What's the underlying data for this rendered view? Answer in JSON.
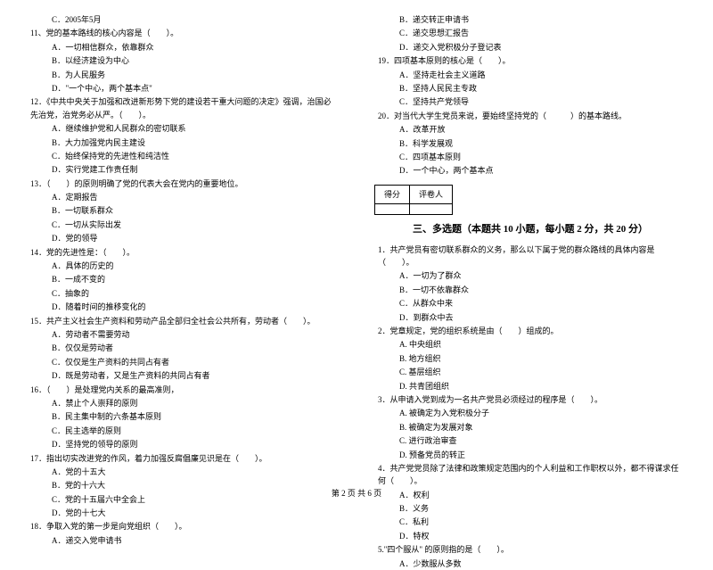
{
  "leftColumn": {
    "items": [
      {
        "type": "option",
        "text": "C．2005年5月"
      },
      {
        "type": "question",
        "text": "11、党的基本路线的核心内容是（　　）。"
      },
      {
        "type": "option",
        "text": "A．一切相信群众，依靠群众"
      },
      {
        "type": "option",
        "text": "B．以经济建设为中心"
      },
      {
        "type": "option",
        "text": "B．为人民服务"
      },
      {
        "type": "option",
        "text": "D．\"一个中心，两个基本点\""
      },
      {
        "type": "question",
        "text": "12．《中共中央关于加强和改进新形势下党的建设若干重大问题的决定》强调，治国必先治党，治党务必从严。（　　）。"
      },
      {
        "type": "option",
        "text": "A．继续维护党和人民群众的密切联系"
      },
      {
        "type": "option",
        "text": "B．大力加强党内民主建设"
      },
      {
        "type": "option",
        "text": "C．始终保持党的先进性和纯洁性"
      },
      {
        "type": "option",
        "text": "D．实行党建工作责任制"
      },
      {
        "type": "question",
        "text": "13．（　　）的原则明确了党的代表大会在党内的重要地位。"
      },
      {
        "type": "option",
        "text": "A．定期报告"
      },
      {
        "type": "option",
        "text": "B．一切联系群众"
      },
      {
        "type": "option",
        "text": "C．一切从实际出发"
      },
      {
        "type": "option",
        "text": "D．党的领导"
      },
      {
        "type": "question",
        "text": "14．党的先进性是：（　　）。"
      },
      {
        "type": "option",
        "text": "A．具体的历史的"
      },
      {
        "type": "option",
        "text": "B．一成不变的"
      },
      {
        "type": "option",
        "text": "C．抽象的"
      },
      {
        "type": "option",
        "text": "D．随着时间的推移变化的"
      },
      {
        "type": "question",
        "text": "15．共产主义社会生产资料和劳动产品全部归全社会公共所有，劳动者（　　）。"
      },
      {
        "type": "option",
        "text": "A．劳动者不需要劳动"
      },
      {
        "type": "option",
        "text": "B．仅仅是劳动者"
      },
      {
        "type": "option",
        "text": "C．仅仅是生产资料的共同占有者"
      },
      {
        "type": "option",
        "text": "D．既是劳动者，又是生产资料的共同占有者"
      },
      {
        "type": "question",
        "text": "16．（　　）是处理党内关系的最高准则，"
      },
      {
        "type": "option",
        "text": "A．禁止个人崇拜的原则"
      },
      {
        "type": "option",
        "text": "B．民主集中制的六条基本原则"
      },
      {
        "type": "option",
        "text": "C．民主选举的原则"
      },
      {
        "type": "option",
        "text": "D．坚持党的领导的原则"
      },
      {
        "type": "question",
        "text": "17．指出切实改进党的作风，着力加强反腐倡廉见识是在（　　）。"
      },
      {
        "type": "option",
        "text": "A．党的十五大"
      },
      {
        "type": "option",
        "text": "B．党的十六大"
      },
      {
        "type": "option",
        "text": "C．党的十五届六中全会上"
      },
      {
        "type": "option",
        "text": "D．党的十七大"
      },
      {
        "type": "question",
        "text": "18．争取入党的第一步是向党组织（　　）。"
      },
      {
        "type": "option",
        "text": "A．递交入党申请书"
      }
    ]
  },
  "rightColumn": {
    "topItems": [
      {
        "type": "option",
        "text": "B．递交转正申请书"
      },
      {
        "type": "option",
        "text": "C．递交思想汇报告"
      },
      {
        "type": "option",
        "text": "D．递交入党积极分子登记表"
      },
      {
        "type": "question",
        "text": "19．四项基本原则的核心是（　　）。"
      },
      {
        "type": "option",
        "text": "A．坚持走社会主义道路"
      },
      {
        "type": "option",
        "text": "B．坚持人民民主专政"
      },
      {
        "type": "option",
        "text": "C．坚持共产党领导"
      },
      {
        "type": "question",
        "text": "20．对当代大学生党员来说，要始终坚持党的（　　　）的基本路线。"
      },
      {
        "type": "option",
        "text": "A．改革开放"
      },
      {
        "type": "option",
        "text": "B．科学发展观"
      },
      {
        "type": "option",
        "text": "C．四项基本原则"
      },
      {
        "type": "option",
        "text": "D．一个中心，两个基本点"
      }
    ],
    "scoreHeader": {
      "col1": "得分",
      "col2": "评卷人"
    },
    "sectionTitle": "三、多选题（本题共 10 小题，每小题 2 分，共 20 分）",
    "bottomItems": [
      {
        "type": "question",
        "text": "1．共产党员有密切联系群众的义务，那么以下属于党的群众路线的具体内容是（　　）。"
      },
      {
        "type": "option",
        "text": "A．一切为了群众"
      },
      {
        "type": "option",
        "text": "B．一切不依靠群众"
      },
      {
        "type": "option",
        "text": "C．从群众中来"
      },
      {
        "type": "option",
        "text": "D．到群众中去"
      },
      {
        "type": "question",
        "text": "2．党章规定，党的组织系统是由（　　）组成的。"
      },
      {
        "type": "option",
        "text": "A. 中央组织"
      },
      {
        "type": "option",
        "text": "B. 地方组织"
      },
      {
        "type": "option",
        "text": "C. 基层组织"
      },
      {
        "type": "option",
        "text": "D. 共青团组织"
      },
      {
        "type": "question",
        "text": "3．从申请入党到成为一名共产党员必须经过的程序是（　　）。"
      },
      {
        "type": "option",
        "text": "A. 被确定为入党积极分子"
      },
      {
        "type": "option",
        "text": "B. 被确定为发展对象"
      },
      {
        "type": "option",
        "text": "C. 进行政治审查"
      },
      {
        "type": "option",
        "text": "D. 预备党员的转正"
      },
      {
        "type": "question",
        "text": "4．共产党党员除了法律和政策规定范围内的个人利益和工作职权以外，都不得谋求任何（　　）。"
      },
      {
        "type": "option",
        "text": "A．权利"
      },
      {
        "type": "option",
        "text": "B．义务"
      },
      {
        "type": "option",
        "text": "C．私利"
      },
      {
        "type": "option",
        "text": "D．特权"
      },
      {
        "type": "question",
        "text": "5.\"四个服从\" 的原则指的是（　　）。"
      },
      {
        "type": "option",
        "text": "A．少数服从多数"
      }
    ]
  },
  "footer": "第 2 页 共 6 页"
}
